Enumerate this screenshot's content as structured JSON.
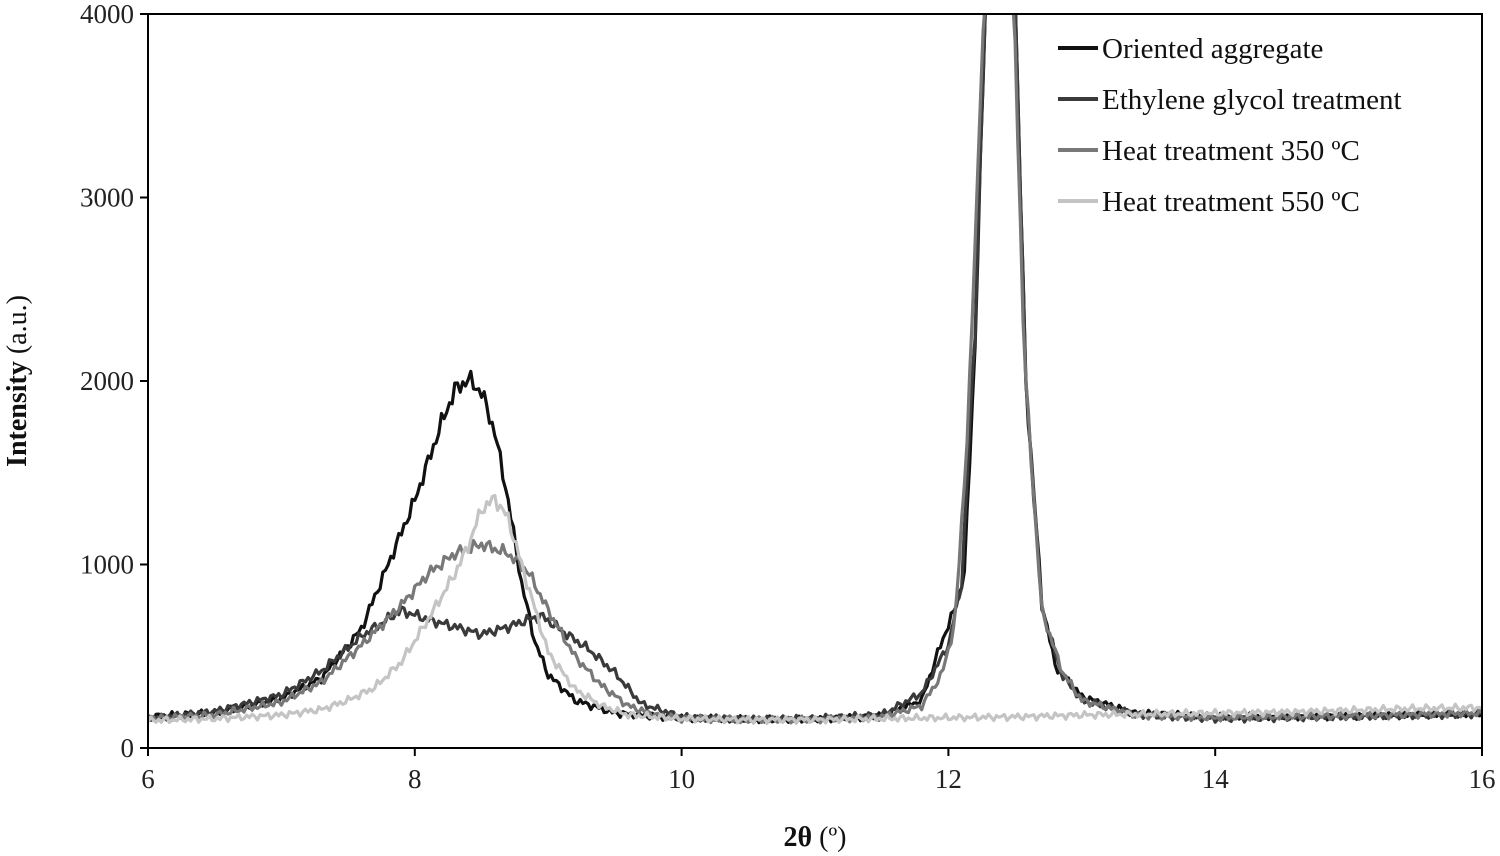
{
  "chart_data": {
    "type": "line",
    "xlabel_main": "2θ",
    "xlabel_unit": " (º)",
    "ylabel_main": "Intensity",
    "ylabel_unit": " (a.u.)",
    "xlim": [
      6,
      16
    ],
    "ylim": [
      0,
      4000
    ],
    "xticks": [
      6,
      8,
      10,
      12,
      14,
      16
    ],
    "yticks": [
      0,
      1000,
      2000,
      3000,
      4000
    ],
    "legend_position": "top-right",
    "series": [
      {
        "name": "Oriented aggregate",
        "color": "#111111",
        "points": [
          [
            6,
            170
          ],
          [
            6.5,
            190
          ],
          [
            7,
            270
          ],
          [
            7.3,
            380
          ],
          [
            7.6,
            650
          ],
          [
            7.8,
            1000
          ],
          [
            8.0,
            1350
          ],
          [
            8.1,
            1560
          ],
          [
            8.2,
            1770
          ],
          [
            8.3,
            1950
          ],
          [
            8.4,
            2010
          ],
          [
            8.5,
            1940
          ],
          [
            8.6,
            1720
          ],
          [
            8.7,
            1350
          ],
          [
            8.8,
            900
          ],
          [
            8.9,
            580
          ],
          [
            9.0,
            400
          ],
          [
            9.2,
            260
          ],
          [
            9.5,
            190
          ],
          [
            10,
            160
          ],
          [
            10.5,
            155
          ],
          [
            11,
            160
          ],
          [
            11.5,
            175
          ],
          [
            11.8,
            260
          ],
          [
            11.95,
            580
          ],
          [
            12.05,
            760
          ],
          [
            12.12,
            950
          ],
          [
            12.2,
            2200
          ],
          [
            12.28,
            4100
          ],
          [
            12.5,
            4100
          ],
          [
            12.58,
            2000
          ],
          [
            12.7,
            800
          ],
          [
            12.8,
            450
          ],
          [
            13,
            280
          ],
          [
            13.4,
            190
          ],
          [
            14,
            170
          ],
          [
            15,
            175
          ],
          [
            16,
            185
          ]
        ]
      },
      {
        "name": "Ethylene glycol treatment",
        "color": "#3a3a3a",
        "points": [
          [
            6,
            160
          ],
          [
            6.5,
            200
          ],
          [
            7,
            290
          ],
          [
            7.3,
            420
          ],
          [
            7.6,
            610
          ],
          [
            7.9,
            750
          ],
          [
            8.1,
            700
          ],
          [
            8.3,
            660
          ],
          [
            8.5,
            620
          ],
          [
            8.7,
            660
          ],
          [
            8.85,
            700
          ],
          [
            8.95,
            720
          ],
          [
            9.1,
            640
          ],
          [
            9.3,
            540
          ],
          [
            9.5,
            410
          ],
          [
            9.7,
            240
          ],
          [
            10,
            170
          ],
          [
            10.5,
            160
          ],
          [
            11,
            160
          ],
          [
            11.5,
            180
          ],
          [
            11.8,
            300
          ],
          [
            12.0,
            560
          ],
          [
            12.1,
            900
          ],
          [
            12.2,
            2300
          ],
          [
            12.28,
            4100
          ],
          [
            12.5,
            4100
          ],
          [
            12.58,
            2000
          ],
          [
            12.7,
            760
          ],
          [
            12.85,
            400
          ],
          [
            13,
            260
          ],
          [
            13.4,
            180
          ],
          [
            14,
            160
          ],
          [
            15,
            170
          ],
          [
            16,
            185
          ]
        ]
      },
      {
        "name": "Heat treatment 350 ºC",
        "color": "#787878",
        "points": [
          [
            6,
            160
          ],
          [
            6.5,
            180
          ],
          [
            7,
            250
          ],
          [
            7.3,
            360
          ],
          [
            7.6,
            560
          ],
          [
            7.9,
            780
          ],
          [
            8.1,
            950
          ],
          [
            8.3,
            1060
          ],
          [
            8.5,
            1110
          ],
          [
            8.7,
            1060
          ],
          [
            8.85,
            960
          ],
          [
            9.0,
            750
          ],
          [
            9.2,
            500
          ],
          [
            9.4,
            340
          ],
          [
            9.6,
            230
          ],
          [
            9.8,
            180
          ],
          [
            10,
            160
          ],
          [
            10.5,
            150
          ],
          [
            11,
            155
          ],
          [
            11.5,
            170
          ],
          [
            11.8,
            230
          ],
          [
            11.95,
            400
          ],
          [
            12.05,
            680
          ],
          [
            12.15,
            1800
          ],
          [
            12.27,
            4100
          ],
          [
            12.49,
            4100
          ],
          [
            12.57,
            2100
          ],
          [
            12.7,
            750
          ],
          [
            12.85,
            420
          ],
          [
            13,
            260
          ],
          [
            13.4,
            180
          ],
          [
            14,
            165
          ],
          [
            15,
            175
          ],
          [
            16,
            190
          ]
        ]
      },
      {
        "name": "Heat treatment 550 ºC",
        "color": "#c4c4c4",
        "points": [
          [
            6,
            150
          ],
          [
            6.5,
            160
          ],
          [
            7,
            180
          ],
          [
            7.3,
            210
          ],
          [
            7.5,
            260
          ],
          [
            7.7,
            330
          ],
          [
            7.9,
            470
          ],
          [
            8.1,
            700
          ],
          [
            8.3,
            950
          ],
          [
            8.4,
            1100
          ],
          [
            8.5,
            1300
          ],
          [
            8.6,
            1360
          ],
          [
            8.7,
            1250
          ],
          [
            8.8,
            1000
          ],
          [
            8.9,
            760
          ],
          [
            9.0,
            520
          ],
          [
            9.2,
            320
          ],
          [
            9.4,
            230
          ],
          [
            9.6,
            180
          ],
          [
            10,
            160
          ],
          [
            10.5,
            155
          ],
          [
            11,
            155
          ],
          [
            11.5,
            160
          ],
          [
            12,
            165
          ],
          [
            12.5,
            170
          ],
          [
            13,
            180
          ],
          [
            13.5,
            185
          ],
          [
            14,
            190
          ],
          [
            14.5,
            195
          ],
          [
            15,
            205
          ],
          [
            15.5,
            215
          ],
          [
            16,
            220
          ]
        ]
      }
    ]
  }
}
